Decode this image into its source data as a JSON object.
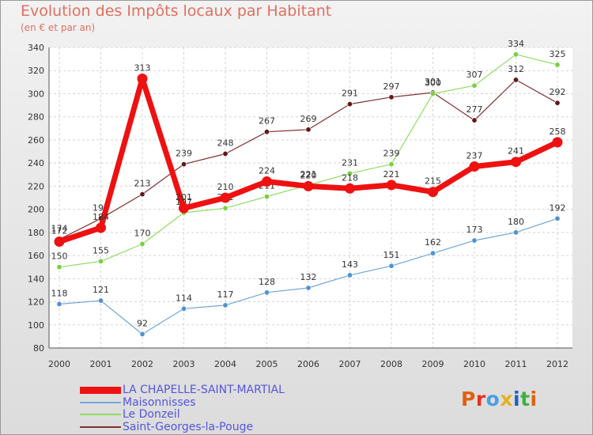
{
  "title": "Evolution des Impôts locaux par Habitant",
  "subtitle": "(en € et par an)",
  "logo": {
    "text": "Proxiti",
    "colors": [
      "#e06010",
      "#e83020",
      "#48a0e0",
      "#e8b020",
      "#2060c0",
      "#40b040",
      "#e06010"
    ]
  },
  "chart_data": {
    "type": "line",
    "title": "Evolution des Impôts locaux par Habitant",
    "subtitle": "(en € et par an)",
    "xlabel": "",
    "ylabel": "",
    "ylim": [
      80,
      340
    ],
    "yticks": [
      80,
      100,
      120,
      140,
      160,
      180,
      200,
      220,
      240,
      260,
      280,
      300,
      320,
      340
    ],
    "grid": true,
    "legend_position": "bottom-left",
    "x": [
      "2000",
      "2001",
      "2002",
      "2003",
      "2004",
      "2005",
      "2006",
      "2007",
      "2008",
      "2009",
      "2010",
      "2011",
      "2012"
    ],
    "series": [
      {
        "name": "Saint-Georges-la-Pouge",
        "color": "#803030",
        "marker": "#601818",
        "width": 1.2,
        "values": [
          174,
          192,
          213,
          239,
          248,
          267,
          269,
          291,
          297,
          301,
          277,
          312,
          292
        ]
      },
      {
        "name": "Le Donzeil",
        "color": "#90dc60",
        "marker": "#78d040",
        "width": 1.2,
        "values": [
          150,
          155,
          170,
          197,
          201,
          211,
          221,
          231,
          239,
          300,
          307,
          334,
          325
        ]
      },
      {
        "name": "Maisonnisses",
        "color": "#6fa6d6",
        "marker": "#4f93cf",
        "width": 1.2,
        "values": [
          118,
          121,
          92,
          114,
          117,
          128,
          132,
          143,
          151,
          162,
          173,
          180,
          192
        ]
      },
      {
        "name": "LA CHAPELLE-SAINT-MARTIAL",
        "color": "#ee1111",
        "marker": "#ee1111",
        "width": 7,
        "values": [
          172,
          184,
          313,
          201,
          210,
          224,
          220,
          218,
          221,
          215,
          237,
          241,
          258
        ]
      }
    ],
    "legend_order": [
      "LA CHAPELLE-SAINT-MARTIAL",
      "Maisonnisses",
      "Le Donzeil",
      "Saint-Georges-la-Pouge"
    ]
  }
}
